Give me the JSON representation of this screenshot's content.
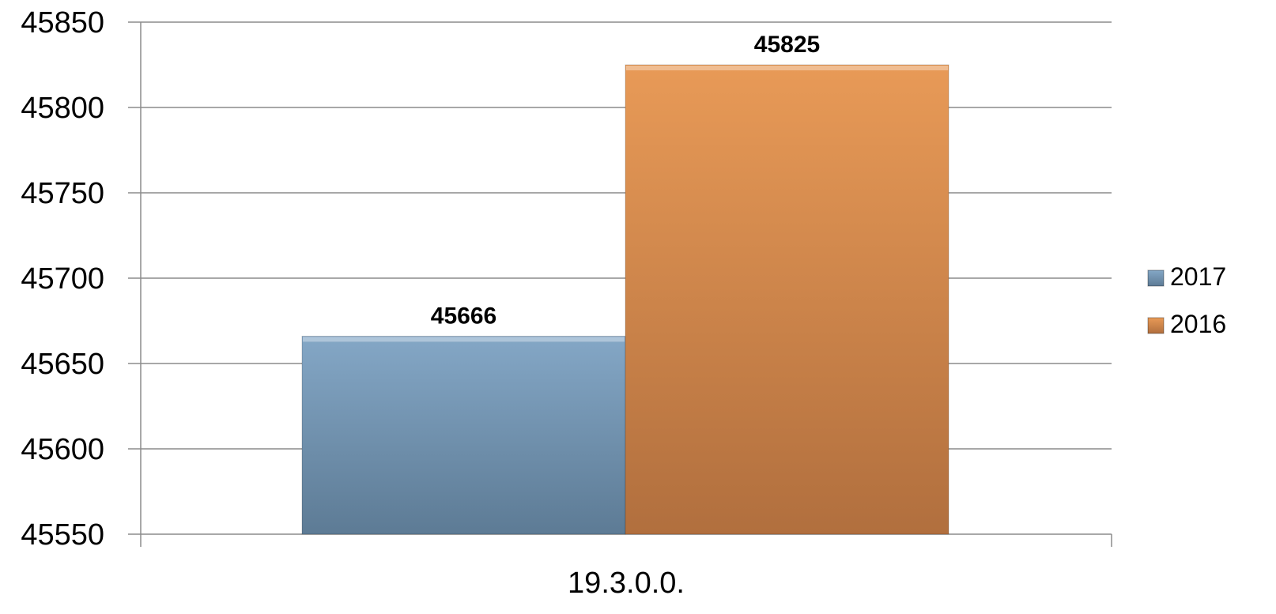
{
  "chart_data": {
    "type": "bar",
    "categories": [
      "19.3.0.0."
    ],
    "series": [
      {
        "name": "2017",
        "values": [
          45666
        ],
        "color": "#7096b6"
      },
      {
        "name": "2016",
        "values": [
          45825
        ],
        "color": "#d9894a"
      }
    ],
    "ylim": [
      45550,
      45850
    ],
    "yticks": [
      45850,
      45800,
      45750,
      45700,
      45650,
      45600,
      45550
    ],
    "grid": true,
    "legend_position": "right",
    "data_labels": true
  }
}
